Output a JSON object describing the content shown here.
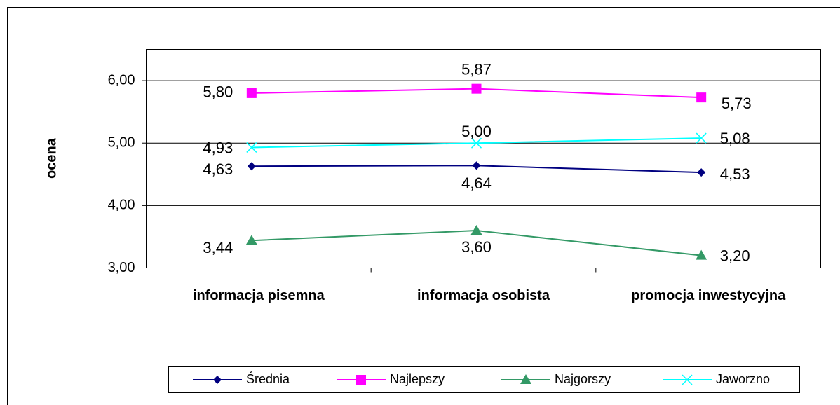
{
  "chart_data": {
    "type": "line",
    "y_label": "ocena",
    "categories": [
      "informacja pisemna",
      "informacja osobista",
      "promocja inwestycyjna"
    ],
    "series": [
      {
        "name": "Średnia",
        "color": "#000080",
        "marker": "diamond",
        "values": [
          4.63,
          4.64,
          4.53
        ],
        "value_labels": [
          "4,63",
          "4,64",
          "4,53"
        ]
      },
      {
        "name": "Najlepszy",
        "color": "#ff00ff",
        "marker": "square",
        "values": [
          5.8,
          5.87,
          5.73
        ],
        "value_labels": [
          "5,80",
          "5,87",
          "5,73"
        ]
      },
      {
        "name": "Najgorszy",
        "color": "#339966",
        "marker": "triangle",
        "values": [
          3.44,
          3.6,
          3.2
        ],
        "value_labels": [
          "3,44",
          "3,60",
          "3,20"
        ]
      },
      {
        "name": "Jaworzno",
        "color": "#00ffff",
        "marker": "x",
        "values": [
          4.93,
          5.0,
          5.08
        ],
        "value_labels": [
          "4,93",
          "5,00",
          "5,08"
        ]
      }
    ],
    "ylim": [
      3,
      6.5
    ],
    "yticks": [
      {
        "value": 3,
        "label": "3,00"
      },
      {
        "value": 4,
        "label": "4,00"
      },
      {
        "value": 5,
        "label": "5,00"
      },
      {
        "value": 6,
        "label": "6,00"
      }
    ],
    "grid": true,
    "legend": "bottom"
  }
}
